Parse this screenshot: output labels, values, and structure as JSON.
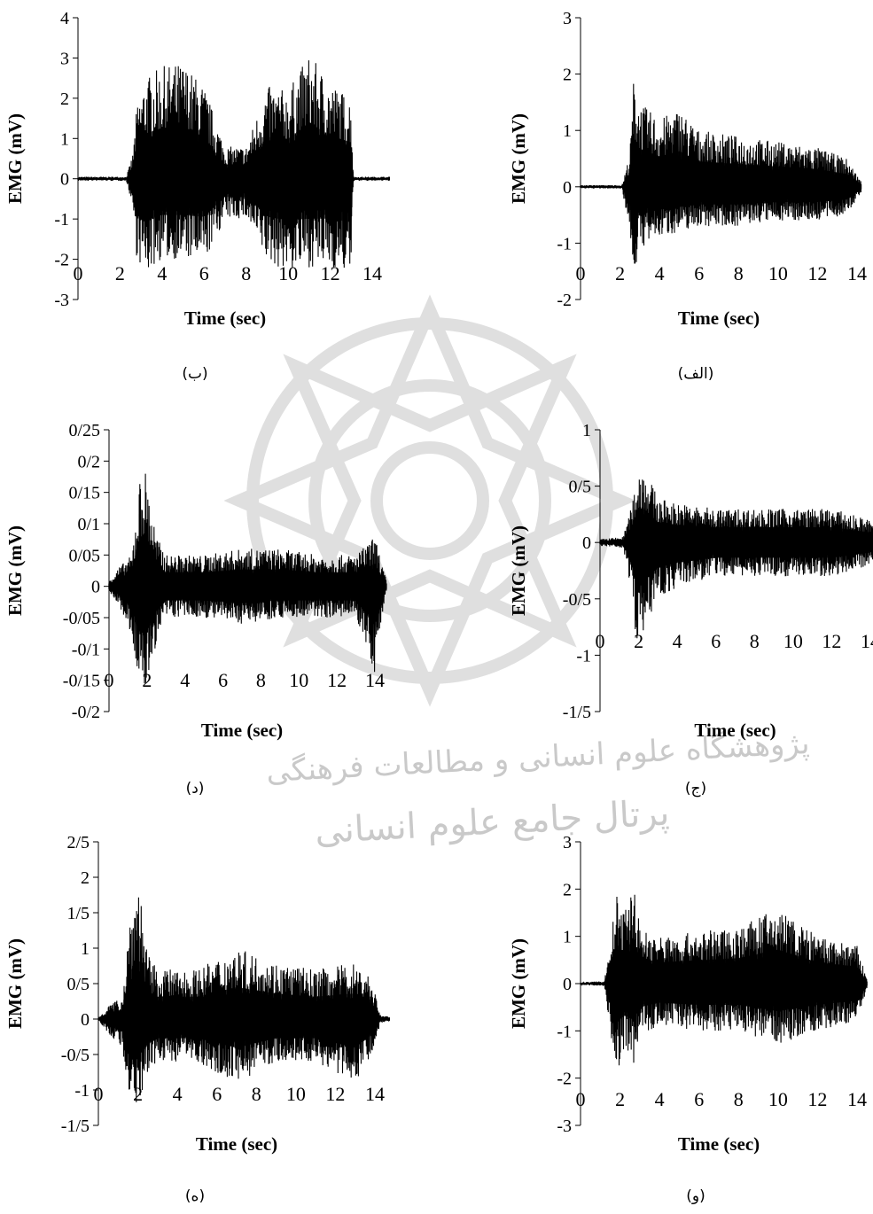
{
  "watermark": {
    "line1": "پژوهشگاه علوم انسانی و مطالعات فرهنگی",
    "line2": "پرتال جامع علوم انسانی"
  },
  "panels": [
    {
      "id": "b",
      "caption": "(ب)"
    },
    {
      "id": "alef",
      "caption": "(الف)"
    },
    {
      "id": "d",
      "caption": "(د)"
    },
    {
      "id": "j",
      "caption": "(ج)"
    },
    {
      "id": "h",
      "caption": "(ه)"
    },
    {
      "id": "v",
      "caption": "(و)"
    }
  ],
  "chart_data": [
    {
      "type": "line",
      "panel": "b",
      "xlabel": "Time (sec)",
      "ylabel": "EMG (mV)",
      "xlim": [
        0,
        14
      ],
      "ylim": [
        -3,
        4
      ],
      "xticks": [
        "0",
        "2",
        "4",
        "6",
        "8",
        "10",
        "12",
        "14"
      ],
      "yticks": [
        "-3",
        "-2",
        "-1",
        "0",
        "1",
        "2",
        "3",
        "4"
      ],
      "x_end": 15.0,
      "series_color": "#000000",
      "envelope": {
        "x": [
          0,
          2.3,
          2.6,
          2.8,
          3.2,
          4,
          5,
          6,
          7,
          8,
          9,
          10,
          11,
          12,
          13,
          13.1,
          15
        ],
        "upper": [
          0.05,
          0.05,
          0.6,
          1.8,
          2.5,
          2.8,
          2.9,
          2.3,
          0.8,
          0.8,
          2.3,
          2.2,
          3.1,
          2.4,
          2.0,
          0.05,
          0.05
        ],
        "lower": [
          -0.05,
          -0.05,
          -0.7,
          -2.0,
          -2.4,
          -2.0,
          -2.0,
          -2.1,
          -1.0,
          -1.0,
          -2.1,
          -2.3,
          -2.2,
          -2.2,
          -2.4,
          -0.05,
          -0.05
        ]
      }
    },
    {
      "type": "line",
      "panel": "alef",
      "xlabel": "Time (sec)",
      "ylabel": "EMG (mV)",
      "xlim": [
        0,
        14
      ],
      "ylim": [
        -2,
        3
      ],
      "xticks": [
        "0",
        "2",
        "4",
        "6",
        "8",
        "10",
        "12",
        "14"
      ],
      "yticks": [
        "-2",
        "-1",
        "0",
        "1",
        "2",
        "3"
      ],
      "x_end": 14.2,
      "series_color": "#000000",
      "envelope": {
        "x": [
          0,
          2.1,
          2.5,
          2.7,
          3,
          4,
          5,
          6,
          8,
          10,
          12,
          13.5,
          14.2
        ],
        "upper": [
          0.03,
          0.03,
          0.6,
          2.0,
          1.5,
          1.2,
          1.4,
          1.0,
          0.9,
          0.8,
          0.7,
          0.5,
          0.1
        ],
        "lower": [
          -0.03,
          -0.03,
          -0.8,
          -1.6,
          -1.1,
          -0.9,
          -0.8,
          -0.7,
          -0.7,
          -0.6,
          -0.6,
          -0.5,
          -0.1
        ]
      }
    },
    {
      "type": "line",
      "panel": "d",
      "xlabel": "Time (sec)",
      "ylabel": "EMG (mV)",
      "xlim": [
        0,
        14
      ],
      "ylim": [
        -0.2,
        0.25
      ],
      "xticks": [
        "0",
        "2",
        "4",
        "6",
        "8",
        "10",
        "12",
        "14"
      ],
      "yticks": [
        "-0/2",
        "-0/15",
        "-0/1",
        "-0/05",
        "0",
        "0/05",
        "0/1",
        "0/15",
        "0/2",
        "0/25"
      ],
      "x_end": 14.6,
      "series_color": "#000000",
      "envelope": {
        "x": [
          0,
          0.5,
          1.2,
          1.6,
          1.9,
          2.5,
          3,
          5,
          7,
          9,
          11,
          13,
          14,
          14.6
        ],
        "upper": [
          0.01,
          0.03,
          0.05,
          0.17,
          0.19,
          0.08,
          0.05,
          0.05,
          0.06,
          0.06,
          0.05,
          0.05,
          0.08,
          0.01
        ],
        "lower": [
          -0.01,
          -0.03,
          -0.08,
          -0.16,
          -0.17,
          -0.09,
          -0.05,
          -0.05,
          -0.06,
          -0.05,
          -0.05,
          -0.05,
          -0.14,
          -0.01
        ]
      }
    },
    {
      "type": "line",
      "panel": "j",
      "xlabel": "Time (sec)",
      "ylabel": "EMG (mV)",
      "xlim": [
        0,
        14
      ],
      "ylim": [
        -1.5,
        1
      ],
      "xticks": [
        "0",
        "2",
        "4",
        "6",
        "8",
        "10",
        "12",
        "14"
      ],
      "yticks": [
        "-1/5",
        "-1",
        "-0/5",
        "0",
        "0/5",
        "1"
      ],
      "x_end": 14.5,
      "series_color": "#000000",
      "envelope": {
        "x": [
          0,
          1.2,
          1.6,
          1.9,
          2.2,
          3,
          4,
          6,
          8,
          10,
          12,
          14,
          14.5
        ],
        "upper": [
          0.03,
          0.05,
          0.3,
          0.6,
          0.7,
          0.4,
          0.35,
          0.3,
          0.3,
          0.3,
          0.3,
          0.2,
          0.05
        ],
        "lower": [
          -0.03,
          -0.05,
          -0.4,
          -0.9,
          -0.8,
          -0.5,
          -0.4,
          -0.3,
          -0.3,
          -0.3,
          -0.3,
          -0.2,
          -0.05
        ]
      }
    },
    {
      "type": "line",
      "panel": "h",
      "xlabel": "Time (sec)",
      "ylabel": "EMG (mV)",
      "xlim": [
        0,
        14
      ],
      "ylim": [
        -1.5,
        2.5
      ],
      "xticks": [
        "0",
        "2",
        "4",
        "6",
        "8",
        "10",
        "12",
        "14"
      ],
      "yticks": [
        "-1/5",
        "-1",
        "-0/5",
        "0",
        "0/5",
        "1",
        "1/5",
        "2",
        "2/5"
      ],
      "x_end": 15.0,
      "series_color": "#000000",
      "envelope": {
        "x": [
          0,
          0.5,
          1.2,
          1.6,
          2,
          2.5,
          3,
          5,
          7,
          9,
          11,
          13,
          13.8,
          14.3,
          15
        ],
        "upper": [
          0.02,
          0.2,
          0.3,
          1.5,
          2.1,
          0.9,
          0.7,
          0.7,
          1.0,
          0.8,
          0.7,
          0.8,
          0.6,
          0.05,
          0.03
        ],
        "lower": [
          -0.02,
          -0.2,
          -0.4,
          -1.3,
          -1.2,
          -0.8,
          -0.6,
          -0.6,
          -0.9,
          -0.6,
          -0.6,
          -0.9,
          -0.5,
          -0.05,
          -0.03
        ]
      }
    },
    {
      "type": "line",
      "panel": "v",
      "xlabel": "Time (sec)",
      "ylabel": "EMG (mV)",
      "xlim": [
        0,
        14
      ],
      "ylim": [
        -3,
        3
      ],
      "xticks": [
        "0",
        "2",
        "4",
        "6",
        "8",
        "10",
        "12",
        "14"
      ],
      "yticks": [
        "-3",
        "-2",
        "-1",
        "0",
        "1",
        "2",
        "3"
      ],
      "x_end": 14.5,
      "series_color": "#000000",
      "envelope": {
        "x": [
          0,
          1.2,
          1.5,
          1.8,
          2.2,
          2.7,
          3,
          4,
          6,
          8,
          10,
          12,
          14,
          14.5
        ],
        "upper": [
          0.03,
          0.05,
          0.8,
          1.9,
          1.5,
          2.2,
          1.2,
          1.0,
          1.1,
          1.2,
          1.6,
          1.0,
          0.8,
          0.1
        ],
        "lower": [
          -0.03,
          -0.05,
          -1.0,
          -1.9,
          -1.5,
          -1.7,
          -1.1,
          -0.9,
          -1.0,
          -1.0,
          -1.3,
          -1.0,
          -0.8,
          -0.1
        ]
      }
    }
  ]
}
